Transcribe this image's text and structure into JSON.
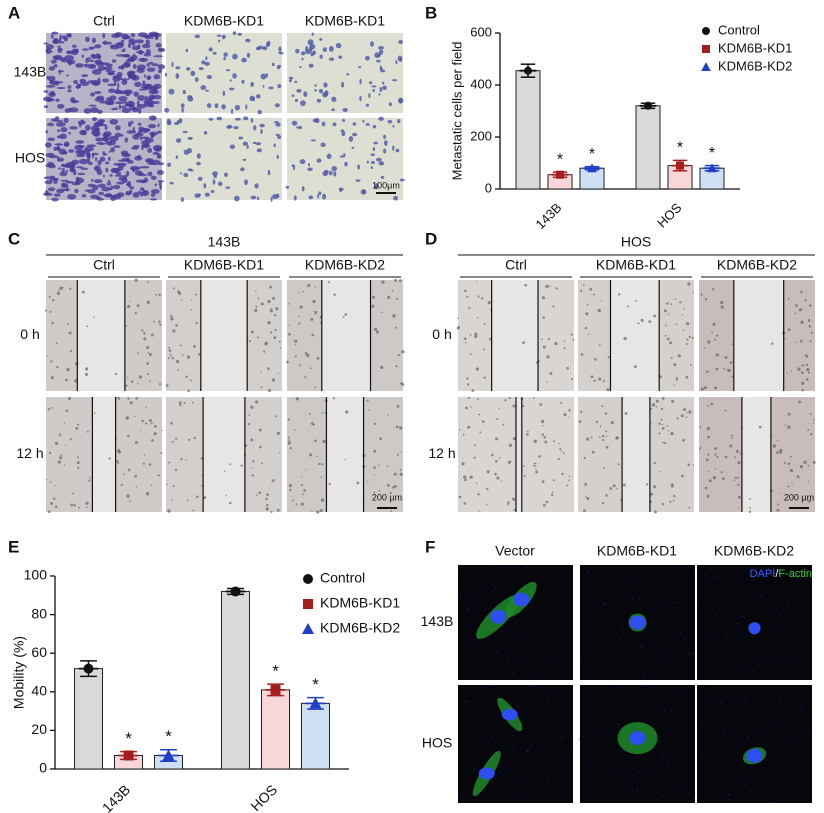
{
  "panel_labels": [
    "A",
    "B",
    "C",
    "D",
    "E",
    "F"
  ],
  "panel_a": {
    "columns": [
      "Ctrl",
      "KDM6B-KD1",
      "KDM6B-KD1"
    ],
    "rows": [
      "143B",
      "HOS"
    ],
    "scale_bar": "100μm"
  },
  "panel_c": {
    "title": "143B",
    "columns": [
      "Ctrl",
      "KDM6B-KD1",
      "KDM6B-KD2"
    ],
    "rows": [
      "0 h",
      "12 h"
    ],
    "scale_bar": "200 μm"
  },
  "panel_d": {
    "title": "HOS",
    "columns": [
      "Ctrl",
      "KDM6B-KD1",
      "KDM6B-KD2"
    ],
    "rows": [
      "0 h",
      "12 h"
    ],
    "scale_bar": "200 μm"
  },
  "panel_f": {
    "columns": [
      "Vector",
      "KDM6B-KD1",
      "KDM6B-KD2"
    ],
    "rows": [
      "143B",
      "HOS"
    ],
    "stain_legend": [
      {
        "label": "DAPI",
        "color": "#3a5cff"
      },
      {
        "label": "/",
        "color": "#ffffff"
      },
      {
        "label": "F-actin",
        "color": "#2fd02f"
      }
    ]
  },
  "chart_data": [
    {
      "type": "bar",
      "y_label": "Metastatic cells per field",
      "categories": [
        "143B",
        "HOS"
      ],
      "ylim": [
        0,
        600
      ],
      "yticks": [
        0,
        200,
        400,
        600
      ],
      "series": [
        {
          "name": "Control",
          "color": "#111111",
          "fill": "#d9d9d9",
          "marker": "circle",
          "values": [
            455,
            320
          ],
          "errors": [
            25,
            10
          ],
          "labels": [
            null,
            null
          ]
        },
        {
          "name": "KDM6B-KD1",
          "color": "#a51d1d",
          "fill": "#f9d6d8",
          "marker": "square",
          "values": [
            55,
            90
          ],
          "errors": [
            10,
            20
          ],
          "labels": [
            "*",
            "*"
          ]
        },
        {
          "name": "KDM6B-KD2",
          "color": "#1f3fc4",
          "fill": "#cfe0f5",
          "marker": "triangle",
          "values": [
            80,
            80
          ],
          "errors": [
            6,
            10
          ],
          "labels": [
            "*",
            "*"
          ]
        }
      ]
    },
    {
      "type": "bar",
      "y_label": "Mobility (%)",
      "categories": [
        "143B",
        "HOS"
      ],
      "ylim": [
        0,
        100
      ],
      "yticks": [
        0,
        20,
        40,
        60,
        80,
        100
      ],
      "series": [
        {
          "name": "Control",
          "color": "#111111",
          "fill": "#d9d9d9",
          "marker": "circle",
          "values": [
            52,
            92
          ],
          "errors": [
            4,
            1.5
          ],
          "labels": [
            null,
            null
          ]
        },
        {
          "name": "KDM6B-KD1",
          "color": "#a51d1d",
          "fill": "#f9d6d8",
          "marker": "square",
          "values": [
            7,
            41
          ],
          "errors": [
            2,
            3
          ],
          "labels": [
            "*",
            "*"
          ]
        },
        {
          "name": "KDM6B-KD2",
          "color": "#1f3fc4",
          "fill": "#cfe0f5",
          "marker": "triangle",
          "values": [
            7,
            34
          ],
          "errors": [
            3,
            3
          ],
          "labels": [
            "*",
            "*"
          ]
        }
      ]
    }
  ]
}
